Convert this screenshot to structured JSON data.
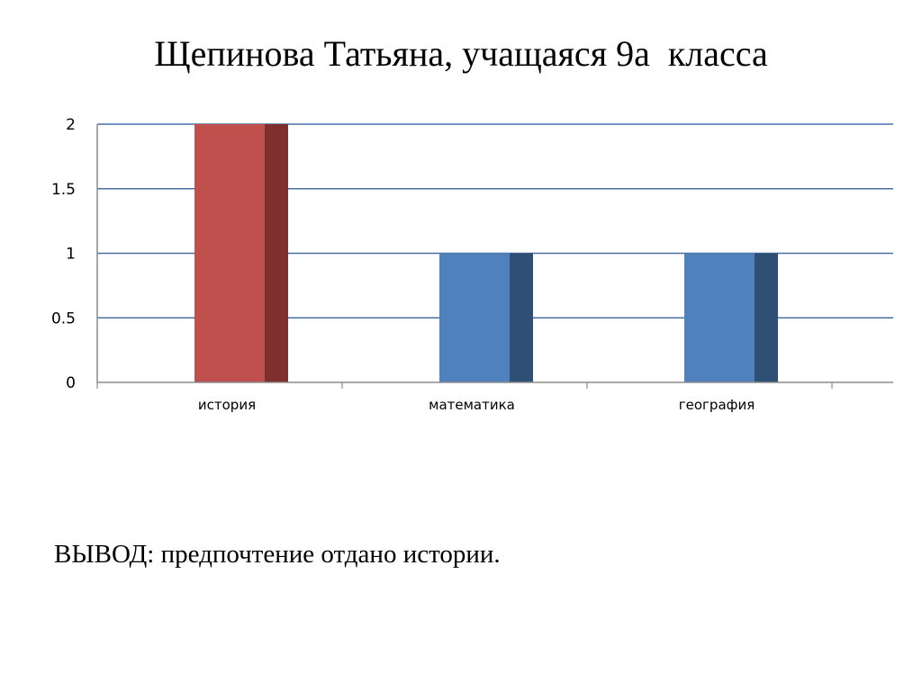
{
  "slide": {
    "title": "Щепинова Татьяна, учащаяся 9а  класса",
    "conclusion": "ВЫВОД: предпочтение отдано истории."
  },
  "colors": {
    "highlight_face": "#C0504D",
    "highlight_side": "#7F2F2E",
    "default_face": "#4F81BD",
    "default_side": "#2F4F75",
    "gridline": "#4A6FA5",
    "axis": "#8C8C8C"
  },
  "chart_data": {
    "type": "bar",
    "categories": [
      "история",
      "математика",
      "география"
    ],
    "values": [
      2,
      1,
      1
    ],
    "highlight_index": 0,
    "ylim": [
      0,
      2
    ],
    "yticks": [
      0,
      0.5,
      1,
      1.5,
      2
    ],
    "ytick_labels": [
      "0",
      "0.5",
      "1",
      "1.5",
      "2"
    ],
    "grid": true,
    "legend": "none",
    "xlabel": "",
    "ylabel": ""
  }
}
